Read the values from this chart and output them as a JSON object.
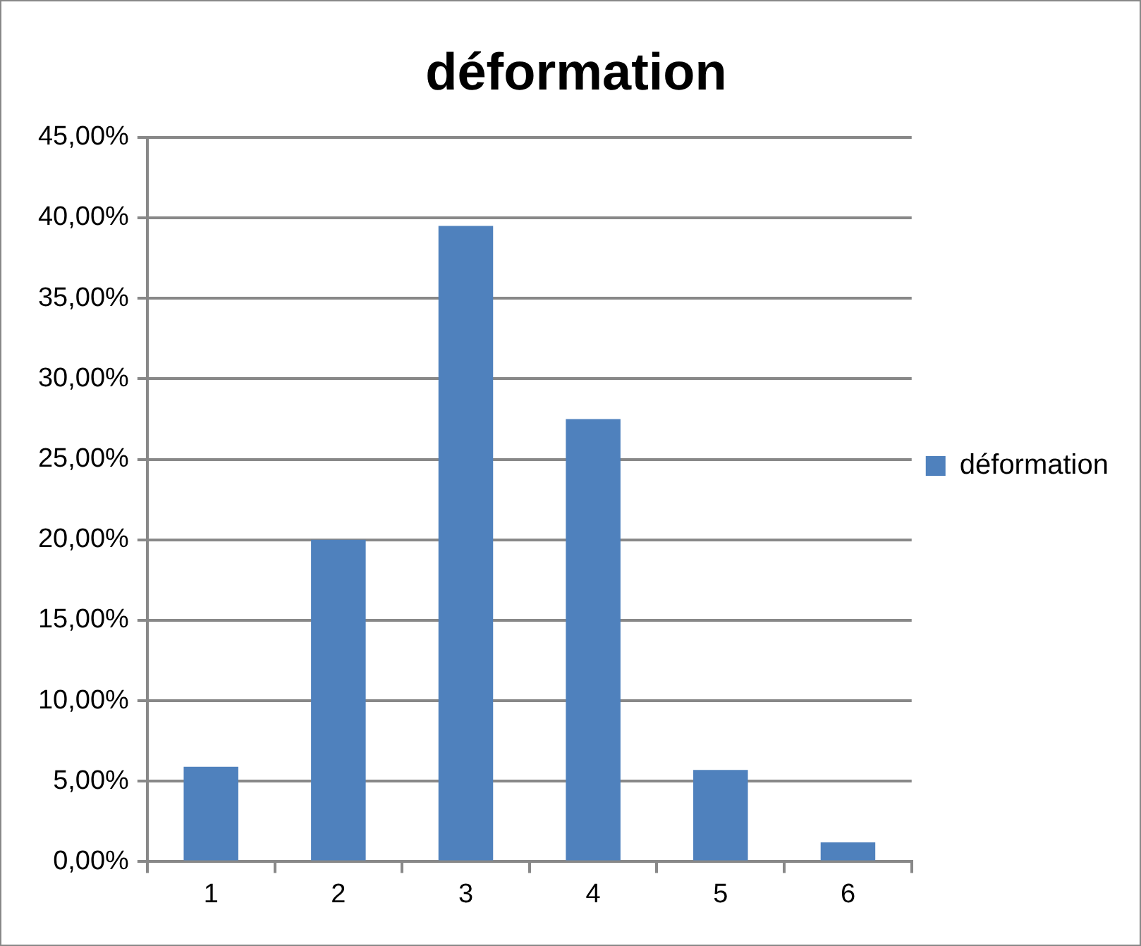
{
  "chart_data": {
    "type": "bar",
    "title": "déformation",
    "categories": [
      "1",
      "2",
      "3",
      "4",
      "5",
      "6"
    ],
    "series": [
      {
        "name": "déformation",
        "color": "#4f81bd",
        "values": [
          5.9,
          20.0,
          39.5,
          27.5,
          5.7,
          1.2
        ]
      }
    ],
    "ylim": [
      0,
      45
    ],
    "yticks": [
      {
        "value": 0,
        "label": "0,00%"
      },
      {
        "value": 5,
        "label": "5,00%"
      },
      {
        "value": 10,
        "label": "10,00%"
      },
      {
        "value": 15,
        "label": "15,00%"
      },
      {
        "value": 20,
        "label": "20,00%"
      },
      {
        "value": 25,
        "label": "25,00%"
      },
      {
        "value": 30,
        "label": "30,00%"
      },
      {
        "value": 35,
        "label": "35,00%"
      },
      {
        "value": 40,
        "label": "40,00%"
      },
      {
        "value": 45,
        "label": "45,00%"
      }
    ],
    "grid": "y",
    "legend": "right"
  }
}
